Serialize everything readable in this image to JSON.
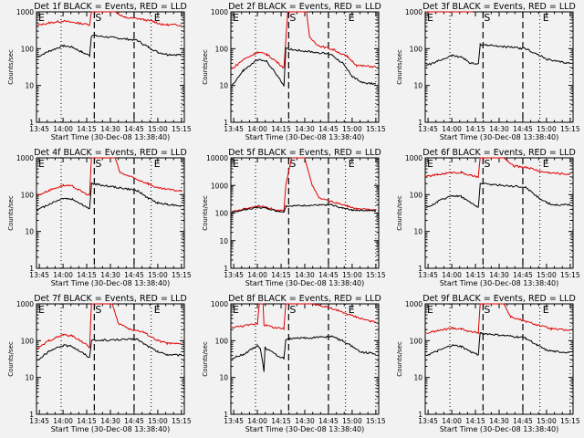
{
  "chart_data": [
    {
      "type": "line",
      "title": "Det 1f BLACK = Events, RED = LLD",
      "xlabel": "Start Time (30-Dec-08 13:38:40)",
      "ylabel": "Counts/sec",
      "ylim": [
        1,
        1000
      ],
      "yticks": [
        "1",
        "10",
        "100",
        "1000"
      ],
      "black": [
        [
          13.73,
          60
        ],
        [
          13.85,
          85
        ],
        [
          14.0,
          120
        ],
        [
          14.1,
          110
        ],
        [
          14.2,
          80
        ],
        [
          14.28,
          65
        ],
        [
          14.3,
          230
        ],
        [
          14.78,
          170
        ],
        [
          14.9,
          110
        ],
        [
          15.0,
          80
        ],
        [
          15.1,
          70
        ],
        [
          15.25,
          68
        ]
      ],
      "red": [
        [
          13.73,
          430
        ],
        [
          13.85,
          500
        ],
        [
          14.0,
          560
        ],
        [
          14.15,
          500
        ],
        [
          14.28,
          450
        ],
        [
          14.3,
          1000
        ],
        [
          14.55,
          1000
        ],
        [
          14.65,
          700
        ],
        [
          14.8,
          650
        ],
        [
          14.95,
          550
        ],
        [
          15.05,
          450
        ],
        [
          15.25,
          440
        ]
      ]
    },
    {
      "type": "line",
      "title": "Det 2f BLACK = Events, RED = LLD",
      "xlabel": "Start Time (30-Dec-08 13:38:40)",
      "ylabel": "Counts/sec",
      "ylim": [
        1,
        1000
      ],
      "yticks": [
        "1",
        "10",
        "100",
        "1000"
      ],
      "black": [
        [
          13.73,
          10
        ],
        [
          13.85,
          25
        ],
        [
          14.0,
          50
        ],
        [
          14.1,
          45
        ],
        [
          14.2,
          20
        ],
        [
          14.28,
          10
        ],
        [
          14.3,
          100
        ],
        [
          14.78,
          70
        ],
        [
          14.9,
          40
        ],
        [
          15.0,
          18
        ],
        [
          15.1,
          12
        ],
        [
          15.25,
          11
        ]
      ],
      "red": [
        [
          13.73,
          28
        ],
        [
          13.85,
          50
        ],
        [
          14.0,
          80
        ],
        [
          14.1,
          70
        ],
        [
          14.2,
          45
        ],
        [
          14.28,
          30
        ],
        [
          14.32,
          1000
        ],
        [
          14.52,
          1000
        ],
        [
          14.55,
          200
        ],
        [
          14.65,
          120
        ],
        [
          14.8,
          95
        ],
        [
          14.95,
          60
        ],
        [
          15.05,
          35
        ],
        [
          15.25,
          32
        ]
      ]
    },
    {
      "type": "line",
      "title": "Det 3f BLACK = Events, RED = LLD",
      "xlabel": "Start Time (30-Dec-08 13:38:40)",
      "ylabel": "Counts/sec",
      "ylim": [
        1,
        1000
      ],
      "yticks": [
        "1",
        "10",
        "100",
        "1000"
      ],
      "black": [
        [
          13.73,
          35
        ],
        [
          13.85,
          45
        ],
        [
          14.0,
          65
        ],
        [
          14.1,
          60
        ],
        [
          14.2,
          40
        ],
        [
          14.28,
          38
        ],
        [
          14.3,
          130
        ],
        [
          14.78,
          100
        ],
        [
          14.9,
          70
        ],
        [
          15.0,
          52
        ],
        [
          15.1,
          45
        ],
        [
          15.25,
          40
        ]
      ],
      "red": [
        [
          13.73,
          1000
        ],
        [
          14.22,
          1000
        ]
      ]
    },
    {
      "type": "line",
      "title": "Det 4f BLACK = Events, RED = LLD",
      "xlabel": "Start Time (30-Dec-08 13:38:40)",
      "ylabel": "Counts/sec",
      "ylim": [
        1,
        1000
      ],
      "yticks": [
        "1",
        "10",
        "100",
        "1000"
      ],
      "black": [
        [
          13.73,
          38
        ],
        [
          13.85,
          55
        ],
        [
          14.0,
          80
        ],
        [
          14.1,
          75
        ],
        [
          14.2,
          55
        ],
        [
          14.28,
          40
        ],
        [
          14.3,
          200
        ],
        [
          14.78,
          130
        ],
        [
          14.9,
          80
        ],
        [
          15.0,
          60
        ],
        [
          15.1,
          55
        ],
        [
          15.25,
          50
        ]
      ],
      "red": [
        [
          13.73,
          95
        ],
        [
          13.85,
          130
        ],
        [
          14.0,
          180
        ],
        [
          14.1,
          170
        ],
        [
          14.2,
          120
        ],
        [
          14.28,
          95
        ],
        [
          14.3,
          1000
        ],
        [
          14.55,
          1000
        ],
        [
          14.6,
          400
        ],
        [
          14.75,
          280
        ],
        [
          14.9,
          200
        ],
        [
          15.0,
          150
        ],
        [
          15.25,
          125
        ]
      ]
    },
    {
      "type": "line",
      "title": "Det 5f BLACK = Events, RED = LLD",
      "xlabel": "Start Time (30-Dec-08 13:38:40)",
      "ylabel": "Counts/sec",
      "ylim": [
        1,
        10000
      ],
      "yticks": [
        "1",
        "10",
        "100",
        "1000",
        "10000"
      ],
      "black": [
        [
          13.73,
          105
        ],
        [
          13.85,
          130
        ],
        [
          14.0,
          160
        ],
        [
          14.1,
          150
        ],
        [
          14.2,
          120
        ],
        [
          14.28,
          110
        ],
        [
          14.3,
          180
        ],
        [
          14.78,
          200
        ],
        [
          14.9,
          150
        ],
        [
          15.0,
          130
        ],
        [
          15.25,
          120
        ]
      ],
      "red": [
        [
          13.73,
          110
        ],
        [
          13.85,
          140
        ],
        [
          14.0,
          180
        ],
        [
          14.1,
          165
        ],
        [
          14.2,
          125
        ],
        [
          14.28,
          120
        ],
        [
          14.3,
          1000
        ],
        [
          14.36,
          10000
        ],
        [
          14.5,
          10000
        ],
        [
          14.58,
          1000
        ],
        [
          14.65,
          350
        ],
        [
          14.8,
          250
        ],
        [
          14.95,
          180
        ],
        [
          15.05,
          140
        ],
        [
          15.25,
          130
        ]
      ]
    },
    {
      "type": "line",
      "title": "Det 6f BLACK = Events, RED = LLD",
      "xlabel": "Start Time (30-Dec-08 13:38:40)",
      "ylabel": "Counts/sec",
      "ylim": [
        1,
        1000
      ],
      "yticks": [
        "1",
        "10",
        "100",
        "1000"
      ],
      "black": [
        [
          13.73,
          42
        ],
        [
          13.85,
          65
        ],
        [
          14.0,
          95
        ],
        [
          14.1,
          90
        ],
        [
          14.2,
          60
        ],
        [
          14.28,
          45
        ],
        [
          14.3,
          200
        ],
        [
          14.78,
          160
        ],
        [
          14.9,
          90
        ],
        [
          15.0,
          60
        ],
        [
          15.1,
          52
        ],
        [
          15.25,
          55
        ]
      ],
      "red": [
        [
          13.73,
          310
        ],
        [
          13.85,
          350
        ],
        [
          14.0,
          400
        ],
        [
          14.1,
          400
        ],
        [
          14.2,
          330
        ],
        [
          14.28,
          300
        ],
        [
          14.3,
          1000
        ],
        [
          14.55,
          1000
        ],
        [
          14.65,
          600
        ],
        [
          14.8,
          550
        ],
        [
          14.95,
          420
        ],
        [
          15.1,
          380
        ],
        [
          15.25,
          360
        ]
      ]
    },
    {
      "type": "line",
      "title": "Det 7f BLACK = Events, RED = LLD",
      "xlabel": "Start Time (30-Dec-08 13:38:40)",
      "ylabel": "Counts/sec",
      "ylim": [
        1,
        1000
      ],
      "yticks": [
        "1",
        "10",
        "100",
        "1000"
      ],
      "black": [
        [
          13.73,
          30
        ],
        [
          13.85,
          50
        ],
        [
          14.0,
          75
        ],
        [
          14.1,
          70
        ],
        [
          14.2,
          48
        ],
        [
          14.28,
          35
        ],
        [
          14.3,
          100
        ],
        [
          14.78,
          110
        ],
        [
          14.9,
          70
        ],
        [
          15.0,
          50
        ],
        [
          15.1,
          42
        ],
        [
          15.25,
          40
        ]
      ],
      "red": [
        [
          13.73,
          60
        ],
        [
          13.85,
          100
        ],
        [
          14.0,
          145
        ],
        [
          14.1,
          135
        ],
        [
          14.2,
          95
        ],
        [
          14.28,
          65
        ],
        [
          14.3,
          1000
        ],
        [
          14.52,
          1000
        ],
        [
          14.58,
          300
        ],
        [
          14.7,
          210
        ],
        [
          14.85,
          170
        ],
        [
          15.0,
          100
        ],
        [
          15.1,
          85
        ],
        [
          15.25,
          80
        ]
      ]
    },
    {
      "type": "line",
      "title": "Det 8f BLACK = Events, RED = LLD",
      "xlabel": "Start Time (30-Dec-08 13:38:40)",
      "ylabel": "Counts/sec",
      "ylim": [
        1,
        1000
      ],
      "yticks": [
        "1",
        "10",
        "100",
        "1000"
      ],
      "black": [
        [
          13.73,
          33
        ],
        [
          13.85,
          42
        ],
        [
          14.0,
          75
        ],
        [
          14.03,
          60
        ],
        [
          14.07,
          15
        ],
        [
          14.08,
          65
        ],
        [
          14.2,
          40
        ],
        [
          14.28,
          33
        ],
        [
          14.3,
          110
        ],
        [
          14.78,
          130
        ],
        [
          14.9,
          100
        ],
        [
          15.0,
          70
        ],
        [
          15.1,
          48
        ],
        [
          15.25,
          45
        ]
      ],
      "red": [
        [
          13.73,
          230
        ],
        [
          13.85,
          250
        ],
        [
          14.0,
          290
        ],
        [
          14.02,
          1000
        ],
        [
          14.06,
          1000
        ],
        [
          14.07,
          270
        ],
        [
          14.2,
          220
        ],
        [
          14.28,
          210
        ],
        [
          14.3,
          1000
        ],
        [
          14.58,
          1000
        ],
        [
          14.72,
          850
        ],
        [
          14.85,
          650
        ],
        [
          15.0,
          480
        ],
        [
          15.1,
          400
        ],
        [
          15.25,
          310
        ]
      ]
    },
    {
      "type": "line",
      "title": "Det 9f BLACK = Events, RED = LLD",
      "xlabel": "Start Time (30-Dec-08 13:38:40)",
      "ylabel": "Counts/sec",
      "ylim": [
        1,
        1000
      ],
      "yticks": [
        "1",
        "10",
        "100",
        "1000"
      ],
      "black": [
        [
          13.73,
          40
        ],
        [
          13.85,
          52
        ],
        [
          14.0,
          75
        ],
        [
          14.1,
          70
        ],
        [
          14.2,
          50
        ],
        [
          14.28,
          42
        ],
        [
          14.3,
          160
        ],
        [
          14.78,
          120
        ],
        [
          14.9,
          75
        ],
        [
          15.0,
          55
        ],
        [
          15.1,
          50
        ],
        [
          15.25,
          48
        ]
      ],
      "red": [
        [
          13.73,
          160
        ],
        [
          13.85,
          185
        ],
        [
          14.0,
          220
        ],
        [
          14.1,
          210
        ],
        [
          14.2,
          175
        ],
        [
          14.28,
          165
        ],
        [
          14.3,
          1000
        ],
        [
          14.55,
          1000
        ],
        [
          14.62,
          450
        ],
        [
          14.75,
          350
        ],
        [
          14.9,
          270
        ],
        [
          15.05,
          210
        ],
        [
          15.25,
          190
        ]
      ]
    }
  ],
  "shared": {
    "xticks": [
      "13:45",
      "14:00",
      "14:15",
      "14:30",
      "14:45",
      "15:00",
      "15:15"
    ],
    "xtick_hours": [
      13.75,
      14.0,
      14.25,
      14.5,
      14.75,
      15.0,
      15.25
    ],
    "xlim_hours": [
      13.72,
      15.28
    ],
    "dotted_lines_hours": [
      13.98,
      14.93,
      15.25
    ],
    "dashed_lines_hours": [
      14.33,
      14.75
    ],
    "markers": [
      {
        "label": "E",
        "hour": 13.73
      },
      {
        "label": "S",
        "hour": 14.33
      },
      {
        "label": "E",
        "hour": 14.95
      }
    ],
    "colors": {
      "events": "#000000",
      "lld": "#e00000",
      "background": "#f2f2f2"
    }
  }
}
